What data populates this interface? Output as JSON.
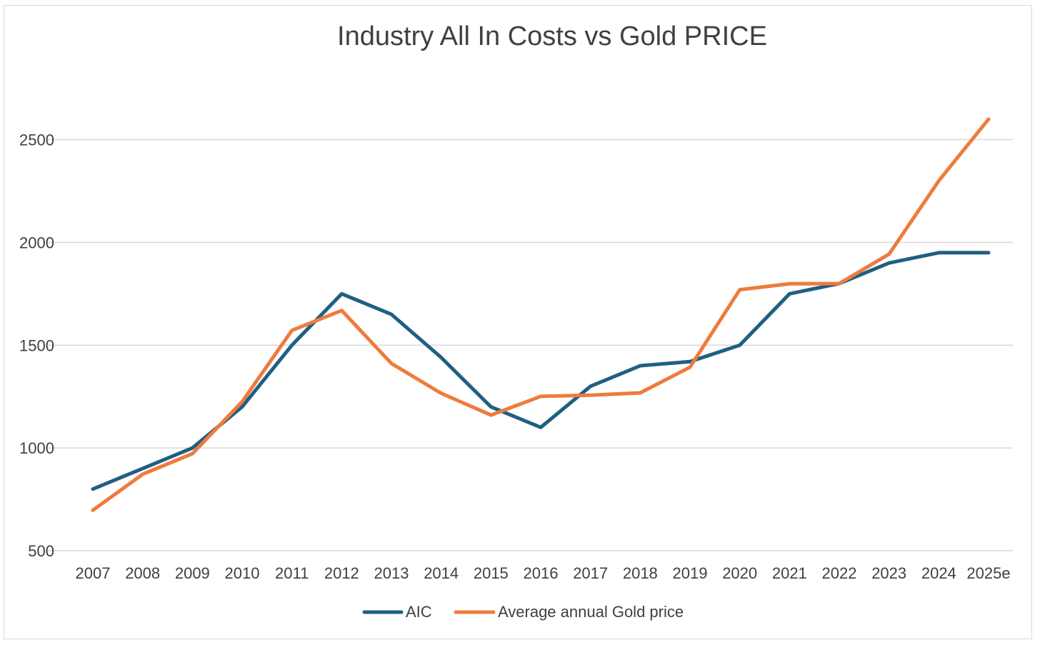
{
  "chart_data": {
    "type": "line",
    "title": "Industry All In Costs vs Gold PRICE",
    "xlabel": "",
    "ylabel": "",
    "categories": [
      "2007",
      "2008",
      "2009",
      "2010",
      "2011",
      "2012",
      "2013",
      "2014",
      "2015",
      "2016",
      "2017",
      "2018",
      "2019",
      "2020",
      "2021",
      "2022",
      "2023",
      "2024",
      "2025e"
    ],
    "ylim": [
      500,
      2700
    ],
    "yticks": [
      500,
      1000,
      1500,
      2000,
      2500
    ],
    "grid": true,
    "legend_position": "bottom",
    "series": [
      {
        "name": "AIC",
        "color": "#1f5f82",
        "values": [
          800,
          900,
          1000,
          1200,
          1500,
          1750,
          1650,
          1440,
          1200,
          1100,
          1300,
          1400,
          1420,
          1500,
          1750,
          1800,
          1900,
          1950,
          1950
        ]
      },
      {
        "name": "Average annual Gold price",
        "color": "#ee7b3d",
        "values": [
          697,
          872,
          972,
          1225,
          1572,
          1669,
          1411,
          1266,
          1160,
          1251,
          1257,
          1268,
          1393,
          1770,
          1799,
          1800,
          1943,
          2300,
          2600
        ]
      }
    ]
  }
}
